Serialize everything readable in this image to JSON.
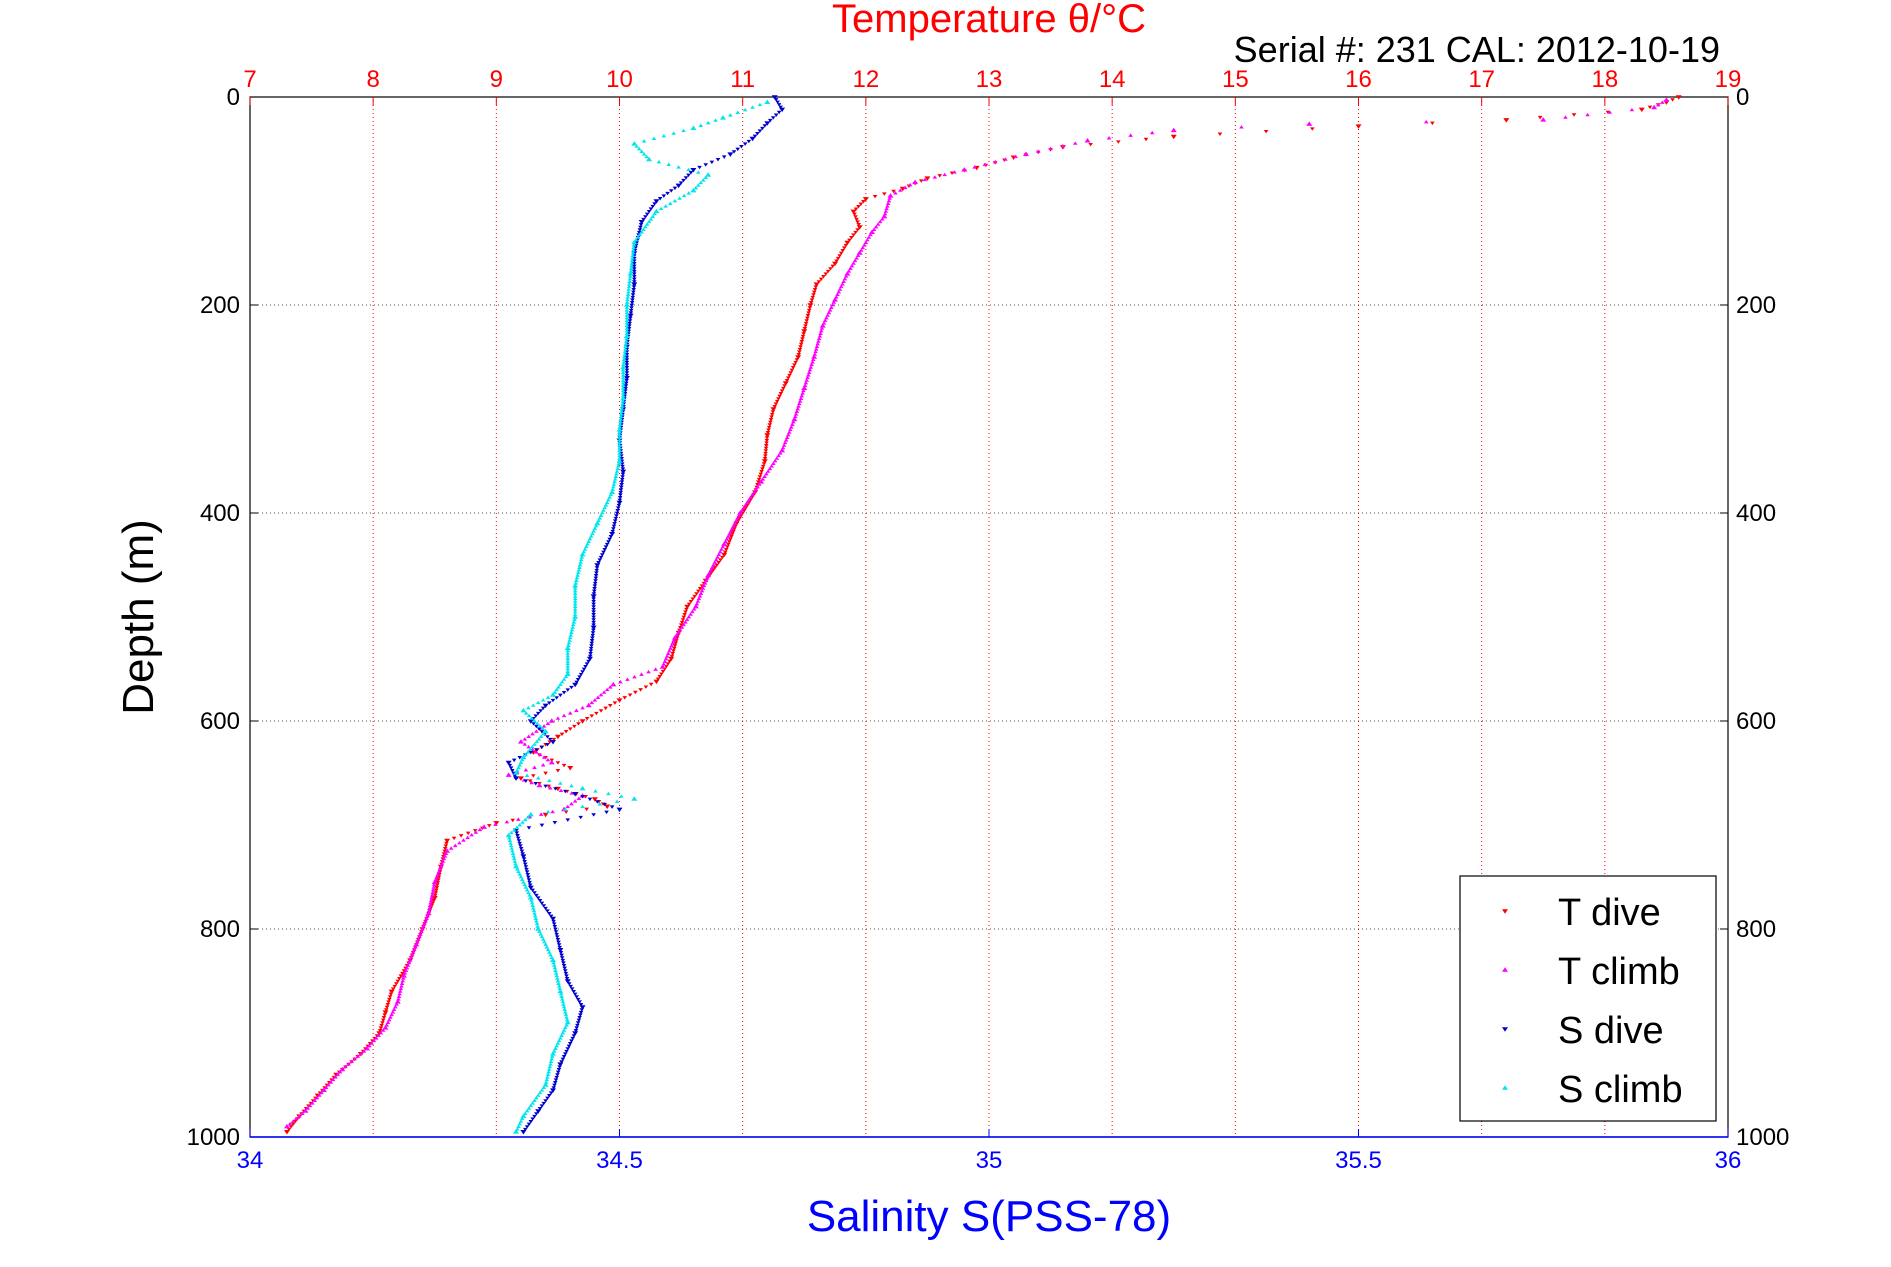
{
  "chart_data": {
    "type": "scatter",
    "title": "Temperature θ/°C",
    "subtitle": "Serial #: 231  CAL: 2012-10-19",
    "ylabel": "Depth (m)",
    "xlabel_bottom": "Salinity S(PSS-78)",
    "ylim": [
      0,
      1000
    ],
    "y_reversed": true,
    "y_ticks": [
      0,
      200,
      400,
      600,
      800,
      1000
    ],
    "temperature_axis": {
      "range": [
        7,
        19
      ],
      "ticks": [
        7,
        8,
        9,
        10,
        11,
        12,
        13,
        14,
        15,
        16,
        17,
        18,
        19
      ]
    },
    "salinity_axis": {
      "range": [
        34,
        36
      ],
      "ticks": [
        "34",
        "34.5",
        "35",
        "35.5",
        "36"
      ]
    },
    "grid": true,
    "legend_position": "bottom-right",
    "colors": {
      "t_dive": "#ff0000",
      "t_climb": "#ff00ff",
      "s_dive": "#0000cc",
      "s_climb": "#00e5ee",
      "temp_axis": "#ff0000",
      "sal_axis": "#0000ff"
    },
    "series": [
      {
        "name": "T dive",
        "axis": "temperature",
        "marker": "triangle-down",
        "points": [
          [
            18.6,
            0
          ],
          [
            18.5,
            5
          ],
          [
            18.3,
            12
          ],
          [
            17.2,
            22
          ],
          [
            16.0,
            28
          ],
          [
            14.5,
            38
          ],
          [
            13.6,
            48
          ],
          [
            13.2,
            58
          ],
          [
            12.9,
            68
          ],
          [
            12.5,
            78
          ],
          [
            12.3,
            88
          ],
          [
            12.0,
            98
          ],
          [
            11.9,
            110
          ],
          [
            11.95,
            125
          ],
          [
            11.85,
            140
          ],
          [
            11.75,
            160
          ],
          [
            11.6,
            180
          ],
          [
            11.55,
            200
          ],
          [
            11.5,
            225
          ],
          [
            11.45,
            250
          ],
          [
            11.35,
            275
          ],
          [
            11.25,
            300
          ],
          [
            11.2,
            325
          ],
          [
            11.18,
            350
          ],
          [
            11.1,
            380
          ],
          [
            10.95,
            410
          ],
          [
            10.85,
            440
          ],
          [
            10.7,
            465
          ],
          [
            10.55,
            490
          ],
          [
            10.48,
            515
          ],
          [
            10.42,
            540
          ],
          [
            10.3,
            562
          ],
          [
            10.0,
            580
          ],
          [
            9.7,
            600
          ],
          [
            9.5,
            615
          ],
          [
            9.3,
            630
          ],
          [
            9.6,
            645
          ],
          [
            9.2,
            655
          ],
          [
            9.5,
            665
          ],
          [
            9.8,
            675
          ],
          [
            9.9,
            682
          ],
          [
            9.4,
            690
          ],
          [
            9.0,
            698
          ],
          [
            8.6,
            715
          ],
          [
            8.55,
            740
          ],
          [
            8.5,
            770
          ],
          [
            8.4,
            800
          ],
          [
            8.3,
            830
          ],
          [
            8.15,
            860
          ],
          [
            8.1,
            880
          ],
          [
            8.05,
            900
          ],
          [
            7.9,
            920
          ],
          [
            7.7,
            940
          ],
          [
            7.55,
            960
          ],
          [
            7.4,
            980
          ],
          [
            7.3,
            995
          ]
        ]
      },
      {
        "name": "T climb",
        "axis": "temperature",
        "marker": "triangle-up",
        "points": [
          [
            18.5,
            3
          ],
          [
            18.4,
            10
          ],
          [
            17.5,
            22
          ],
          [
            15.6,
            26
          ],
          [
            14.5,
            32
          ],
          [
            13.8,
            42
          ],
          [
            13.3,
            55
          ],
          [
            12.8,
            70
          ],
          [
            12.4,
            82
          ],
          [
            12.2,
            95
          ],
          [
            12.15,
            115
          ],
          [
            12.05,
            130
          ],
          [
            11.95,
            150
          ],
          [
            11.85,
            170
          ],
          [
            11.75,
            195
          ],
          [
            11.65,
            220
          ],
          [
            11.58,
            250
          ],
          [
            11.5,
            280
          ],
          [
            11.42,
            310
          ],
          [
            11.32,
            340
          ],
          [
            11.15,
            370
          ],
          [
            10.98,
            400
          ],
          [
            10.85,
            430
          ],
          [
            10.72,
            460
          ],
          [
            10.62,
            490
          ],
          [
            10.45,
            520
          ],
          [
            10.35,
            548
          ],
          [
            9.95,
            565
          ],
          [
            9.75,
            585
          ],
          [
            9.45,
            600
          ],
          [
            9.2,
            620
          ],
          [
            9.45,
            640
          ],
          [
            9.1,
            652
          ],
          [
            9.35,
            662
          ],
          [
            9.7,
            672
          ],
          [
            9.55,
            685
          ],
          [
            8.9,
            702
          ],
          [
            8.6,
            725
          ],
          [
            8.5,
            755
          ],
          [
            8.45,
            785
          ],
          [
            8.35,
            815
          ],
          [
            8.25,
            845
          ],
          [
            8.2,
            870
          ],
          [
            8.1,
            895
          ],
          [
            7.95,
            915
          ],
          [
            7.75,
            935
          ],
          [
            7.6,
            955
          ],
          [
            7.45,
            975
          ],
          [
            7.3,
            990
          ]
        ]
      },
      {
        "name": "S dive",
        "axis": "salinity",
        "marker": "triangle-down",
        "points": [
          [
            34.71,
            0
          ],
          [
            34.72,
            12
          ],
          [
            34.7,
            25
          ],
          [
            34.68,
            40
          ],
          [
            34.65,
            55
          ],
          [
            34.6,
            70
          ],
          [
            34.58,
            85
          ],
          [
            34.55,
            100
          ],
          [
            34.53,
            120
          ],
          [
            34.52,
            150
          ],
          [
            34.52,
            180
          ],
          [
            34.515,
            210
          ],
          [
            34.51,
            240
          ],
          [
            34.51,
            270
          ],
          [
            34.505,
            300
          ],
          [
            34.5,
            330
          ],
          [
            34.505,
            360
          ],
          [
            34.5,
            390
          ],
          [
            34.49,
            420
          ],
          [
            34.47,
            450
          ],
          [
            34.465,
            480
          ],
          [
            34.465,
            510
          ],
          [
            34.46,
            540
          ],
          [
            34.44,
            565
          ],
          [
            34.4,
            585
          ],
          [
            34.38,
            600
          ],
          [
            34.41,
            620
          ],
          [
            34.35,
            640
          ],
          [
            34.36,
            655
          ],
          [
            34.44,
            670
          ],
          [
            34.5,
            685
          ],
          [
            34.36,
            705
          ],
          [
            34.37,
            730
          ],
          [
            34.38,
            760
          ],
          [
            34.41,
            790
          ],
          [
            34.42,
            820
          ],
          [
            34.43,
            850
          ],
          [
            34.45,
            875
          ],
          [
            34.44,
            900
          ],
          [
            34.42,
            930
          ],
          [
            34.41,
            955
          ],
          [
            34.39,
            975
          ],
          [
            34.37,
            995
          ]
        ]
      },
      {
        "name": "S climb",
        "axis": "salinity",
        "marker": "triangle-up",
        "points": [
          [
            34.7,
            5
          ],
          [
            34.64,
            20
          ],
          [
            34.6,
            30
          ],
          [
            34.52,
            45
          ],
          [
            34.54,
            60
          ],
          [
            34.62,
            75
          ],
          [
            34.6,
            90
          ],
          [
            34.55,
            110
          ],
          [
            34.52,
            140
          ],
          [
            34.515,
            170
          ],
          [
            34.51,
            200
          ],
          [
            34.51,
            230
          ],
          [
            34.505,
            260
          ],
          [
            34.505,
            290
          ],
          [
            34.5,
            320
          ],
          [
            34.5,
            350
          ],
          [
            34.49,
            380
          ],
          [
            34.47,
            410
          ],
          [
            34.45,
            440
          ],
          [
            34.44,
            470
          ],
          [
            34.44,
            500
          ],
          [
            34.43,
            530
          ],
          [
            34.43,
            555
          ],
          [
            34.41,
            575
          ],
          [
            34.37,
            590
          ],
          [
            34.4,
            610
          ],
          [
            34.37,
            635
          ],
          [
            34.36,
            650
          ],
          [
            34.45,
            665
          ],
          [
            34.52,
            675
          ],
          [
            34.38,
            690
          ],
          [
            34.35,
            710
          ],
          [
            34.36,
            740
          ],
          [
            34.38,
            770
          ],
          [
            34.39,
            800
          ],
          [
            34.41,
            830
          ],
          [
            34.42,
            860
          ],
          [
            34.43,
            890
          ],
          [
            34.41,
            920
          ],
          [
            34.4,
            950
          ],
          [
            34.37,
            980
          ],
          [
            34.36,
            995
          ]
        ]
      }
    ]
  }
}
